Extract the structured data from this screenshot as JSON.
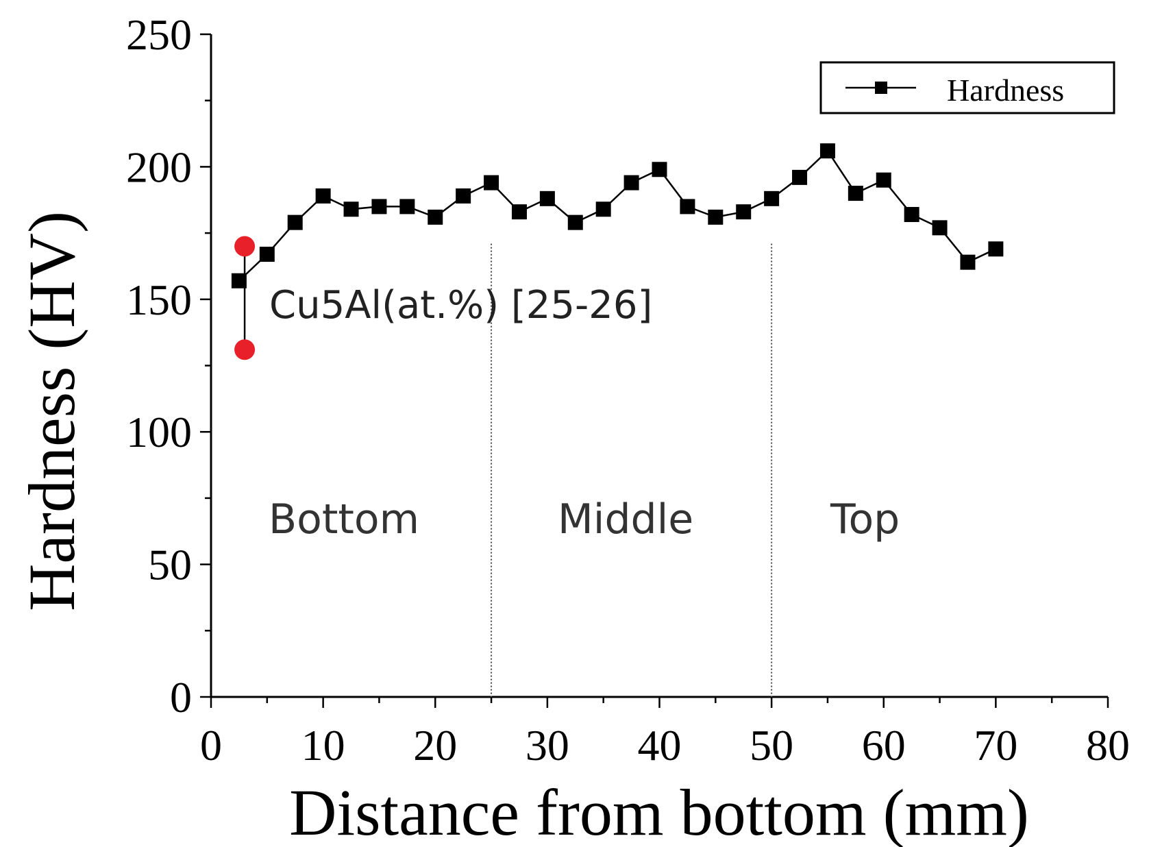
{
  "chart_data": {
    "type": "line",
    "xlabel": "Distance from bottom (mm)",
    "ylabel": "Hardness (HV)",
    "xlim": [
      0,
      80
    ],
    "ylim": [
      0,
      250
    ],
    "x_ticks": [
      "0",
      "10",
      "20",
      "30",
      "40",
      "50",
      "60",
      "70",
      "80"
    ],
    "y_ticks": [
      "0",
      "50",
      "100",
      "150",
      "200",
      "250"
    ],
    "grid": false,
    "legend": {
      "position": "top-right",
      "entries": [
        "Hardness"
      ]
    },
    "series": [
      {
        "name": "Hardness",
        "color": "#000000",
        "marker": "square",
        "x": [
          2.5,
          5,
          7.5,
          10,
          12.5,
          15,
          17.5,
          20,
          22.5,
          25,
          27.5,
          30,
          32.5,
          35,
          37.5,
          40,
          42.5,
          45,
          47.5,
          50,
          52.5,
          55,
          57.5,
          60,
          62.5,
          65,
          67.5,
          70
        ],
        "y": [
          157,
          167,
          179,
          189,
          184,
          185,
          185,
          181,
          189,
          194,
          183,
          188,
          179,
          184,
          194,
          199,
          185,
          181,
          183,
          188,
          196,
          206,
          190,
          195,
          182,
          177,
          164,
          169
        ]
      }
    ],
    "reference": {
      "label": "Cu5Al(at.%) [25-26]",
      "x": 3,
      "y_low": 131,
      "y_high": 170,
      "color": "#e8202a"
    },
    "regions": {
      "dividers": [
        25,
        50
      ],
      "labels": [
        "Bottom",
        "Middle",
        "Top"
      ]
    }
  }
}
